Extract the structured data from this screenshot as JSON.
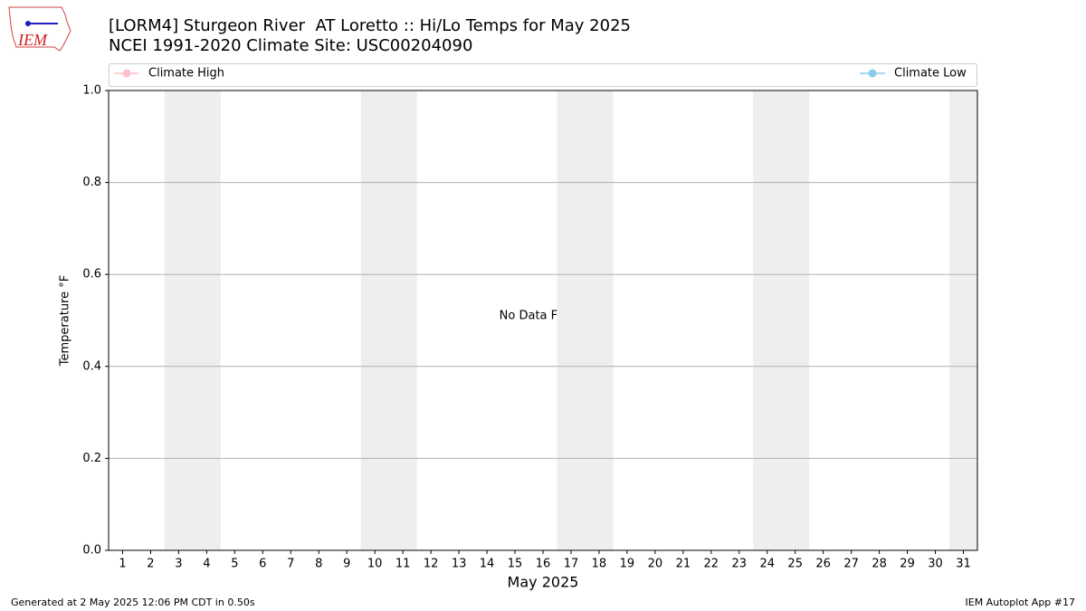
{
  "chart_data": {
    "type": "line",
    "title": "[LORM4] Sturgeon River  AT Loretto :: Hi/Lo Temps for May 2025",
    "subtitle": "NCEI 1991-2020 Climate Site: USC00204090",
    "x_label": "May 2025",
    "y_label": "Temperature °F",
    "annotation": "No Data Found",
    "xlim": [
      0.5,
      31.5
    ],
    "xticks": [
      1,
      2,
      3,
      4,
      5,
      6,
      7,
      8,
      9,
      10,
      11,
      12,
      13,
      14,
      15,
      16,
      17,
      18,
      19,
      20,
      21,
      22,
      23,
      24,
      25,
      26,
      27,
      28,
      29,
      30,
      31
    ],
    "ylim": [
      0,
      1
    ],
    "yticks": [
      {
        "value": 0,
        "label": "0.0"
      },
      0.2,
      0.4,
      0.6,
      0.8,
      {
        "value": 1,
        "label": "1.0"
      }
    ],
    "grid": true,
    "shaded_spans": [
      [
        2.5,
        4.5
      ],
      [
        9.5,
        11.5
      ],
      [
        16.5,
        18.5
      ],
      [
        23.5,
        25.5
      ],
      [
        30.5,
        31.5
      ]
    ],
    "shade_color": "#eeeeee",
    "series": [
      {
        "name": "Climate High",
        "color": "#ffc0cb",
        "values": []
      },
      {
        "name": "Climate Low",
        "color": "#87ceeb",
        "values": []
      }
    ]
  },
  "logo_text": "IEM",
  "footer": {
    "left": "Generated at 2 May 2025 12:06 PM CDT in 0.50s",
    "right": "IEM Autoplot App #17"
  }
}
